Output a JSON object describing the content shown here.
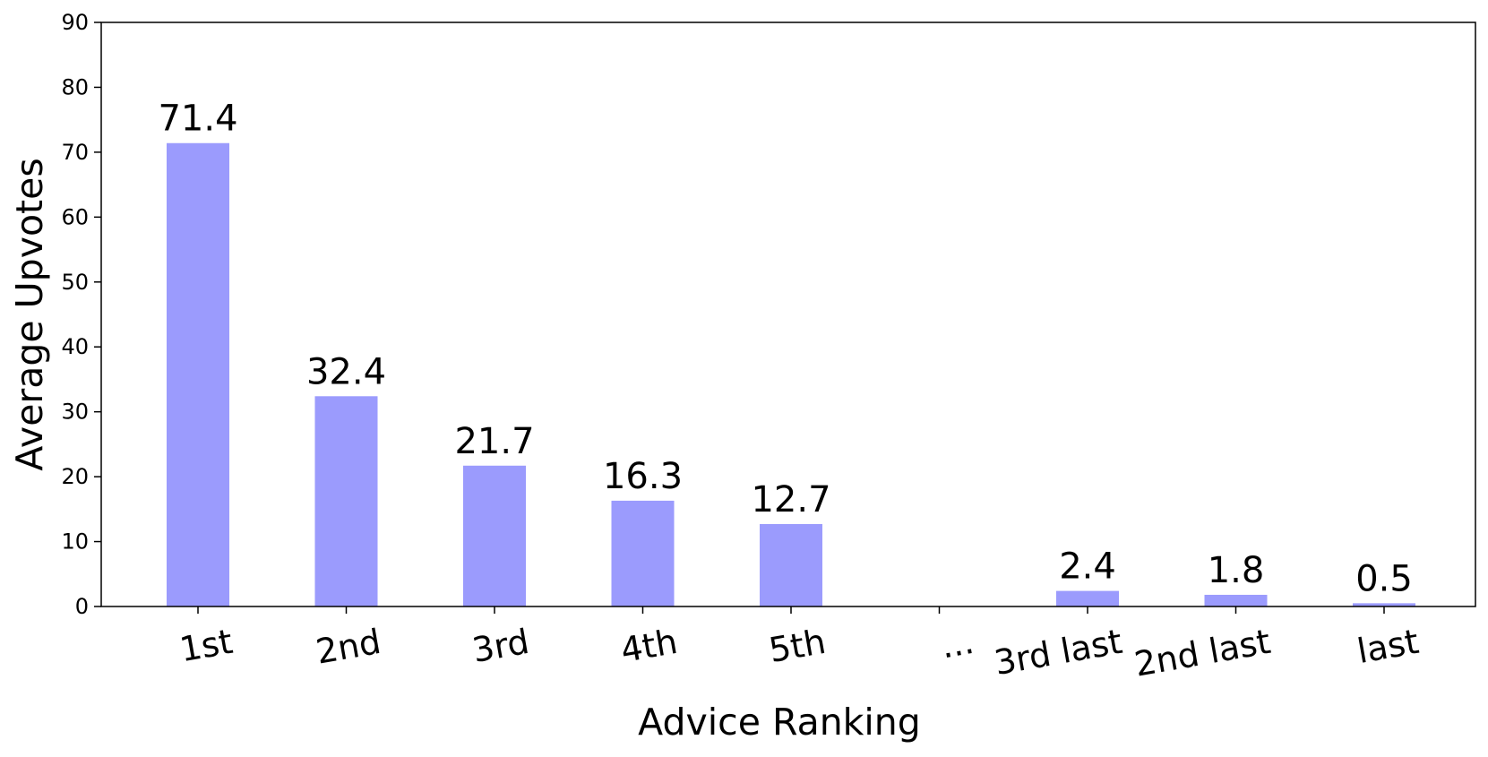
{
  "chart_data": {
    "type": "bar",
    "title": "",
    "xlabel": "Advice Ranking",
    "ylabel": "Average Upvotes",
    "categories": [
      "1st",
      "2nd",
      "3rd",
      "4th",
      "5th",
      "...",
      "3rd last",
      "2nd last",
      "last"
    ],
    "values": [
      71.4,
      32.4,
      21.7,
      16.3,
      12.7,
      null,
      2.4,
      1.8,
      0.5
    ],
    "data_labels": [
      "71.4",
      "32.4",
      "21.7",
      "16.3",
      "12.7",
      "",
      "2.4",
      "1.8",
      "0.5"
    ],
    "ylim": [
      0,
      90
    ],
    "yticks": [
      0,
      10,
      20,
      30,
      40,
      50,
      60,
      70,
      80,
      90
    ],
    "grid": false,
    "bar_color": "#9b9bfd",
    "legend": "none"
  }
}
